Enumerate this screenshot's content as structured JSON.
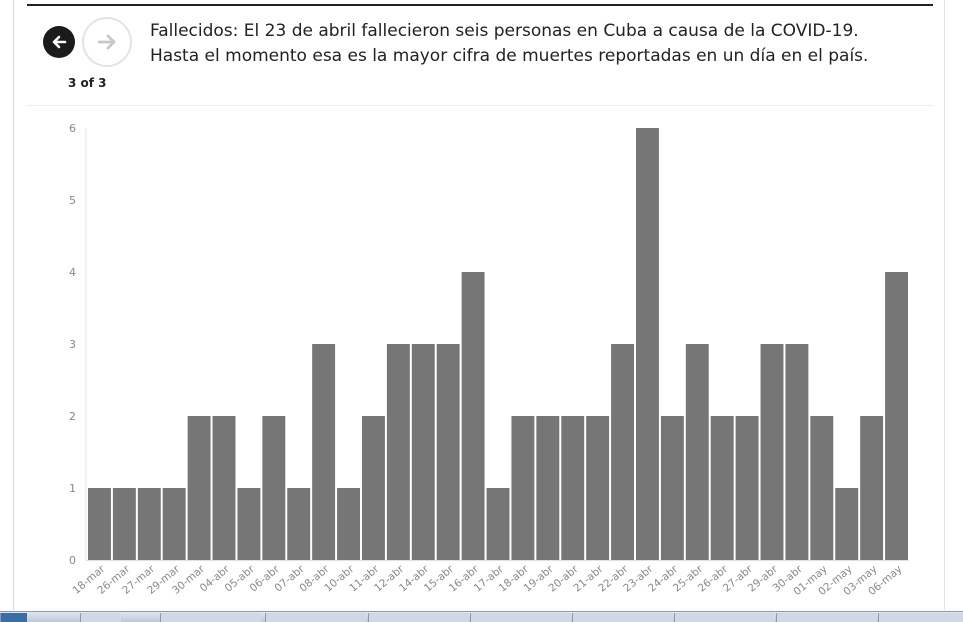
{
  "slideshow": {
    "caption": "Fallecidos: El 23 de abril fallecieron seis personas en Cuba a causa de la COVID-19. Hasta el momento esa es la mayor cifra de muertes reportadas en un día en el país.",
    "counter": "3 of 3",
    "prev_icon": "arrow-left-icon",
    "next_icon": "arrow-right-icon"
  },
  "colors": {
    "bar": "#767676",
    "axis_text": "#888888",
    "gridline": "#e6e6e6",
    "prev_button": "#1b1b1b",
    "next_arrow": "#c8c8c8"
  },
  "chart_data": {
    "type": "bar",
    "title": "",
    "xlabel": "",
    "ylabel": "",
    "categories": [
      "18-mar",
      "26-mar",
      "27-mar",
      "29-mar",
      "30-mar",
      "04-abr",
      "05-abr",
      "06-abr",
      "07-abr",
      "08-abr",
      "10-abr",
      "11-abr",
      "12-abr",
      "14-abr",
      "15-abr",
      "16-abr",
      "17-abr",
      "18-abr",
      "19-abr",
      "20-abr",
      "21-abr",
      "22-abr",
      "23-abr",
      "24-abr",
      "25-abr",
      "26-abr",
      "27-abr",
      "29-abr",
      "30-abr",
      "01-may",
      "02-may",
      "03-may",
      "06-may"
    ],
    "values": [
      1,
      1,
      1,
      1,
      2,
      2,
      1,
      2,
      1,
      3,
      1,
      2,
      3,
      3,
      3,
      4,
      1,
      2,
      2,
      2,
      2,
      3,
      6,
      2,
      3,
      2,
      2,
      3,
      3,
      2,
      1,
      2,
      4
    ],
    "ylim": [
      0,
      6
    ],
    "yticks": [
      0,
      1,
      2,
      3,
      4,
      5,
      6
    ],
    "grid": false,
    "legend": "none"
  }
}
